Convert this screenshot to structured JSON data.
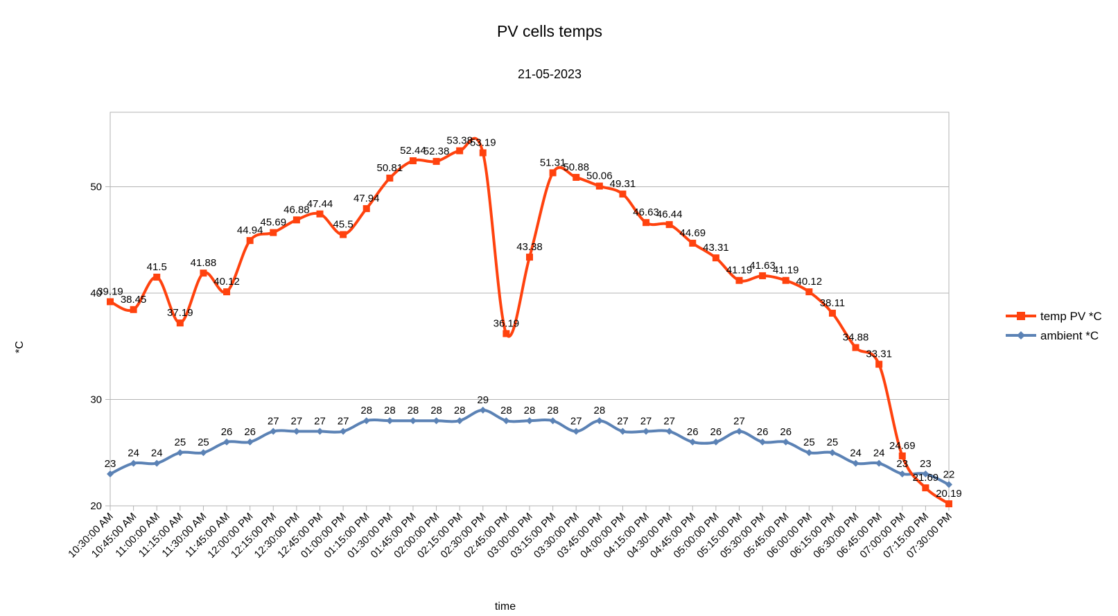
{
  "chart_data": {
    "type": "line",
    "title": "PV cells temps",
    "subtitle": "21-05-2023",
    "xlabel": "time",
    "ylabel": "*C",
    "ylim": [
      20,
      57
    ],
    "yticks": [
      20,
      30,
      40,
      50
    ],
    "grid": true,
    "smooth": true,
    "legend_position": "right",
    "categories": [
      "10:30:00 AM",
      "10:45:00 AM",
      "11:00:00 AM",
      "11:15:00 AM",
      "11:30:00 AM",
      "11:45:00 AM",
      "12:00:00 PM",
      "12:15:00 PM",
      "12:30:00 PM",
      "12:45:00 PM",
      "01:00:00 PM",
      "01:15:00 PM",
      "01:30:00 PM",
      "01:45:00 PM",
      "02:00:00 PM",
      "02:15:00 PM",
      "02:30:00 PM",
      "02:45:00 PM",
      "03:00:00 PM",
      "03:15:00 PM",
      "03:30:00 PM",
      "03:45:00 PM",
      "04:00:00 PM",
      "04:15:00 PM",
      "04:30:00 PM",
      "04:45:00 PM",
      "05:00:00 PM",
      "05:15:00 PM",
      "05:30:00 PM",
      "05:45:00 PM",
      "06:00:00 PM",
      "06:15:00 PM",
      "06:30:00 PM",
      "06:45:00 PM",
      "07:00:00 PM",
      "07:15:00 PM",
      "07:30:00 PM"
    ],
    "series": [
      {
        "name": "temp PV *C",
        "color": "#ff420e",
        "marker": "square",
        "values": [
          39.19,
          38.45,
          41.5,
          37.19,
          41.88,
          40.12,
          44.94,
          45.69,
          46.88,
          47.44,
          45.5,
          47.94,
          50.81,
          52.44,
          52.38,
          53.38,
          53.19,
          36.19,
          43.38,
          51.31,
          50.88,
          50.06,
          49.31,
          46.63,
          46.44,
          44.69,
          43.31,
          41.19,
          41.63,
          41.19,
          40.12,
          38.11,
          34.88,
          33.31,
          24.69,
          21.69,
          20.19
        ]
      },
      {
        "name": "ambient *C",
        "color": "#5b82b5",
        "marker": "diamond",
        "values": [
          23,
          24,
          24,
          25,
          25,
          26,
          26,
          27,
          27,
          27,
          27,
          28,
          28,
          28,
          28,
          28,
          29,
          28,
          28,
          28,
          27,
          28,
          27,
          27,
          27,
          26,
          26,
          27,
          26,
          26,
          25,
          25,
          24,
          24,
          23,
          23,
          22
        ]
      }
    ]
  }
}
